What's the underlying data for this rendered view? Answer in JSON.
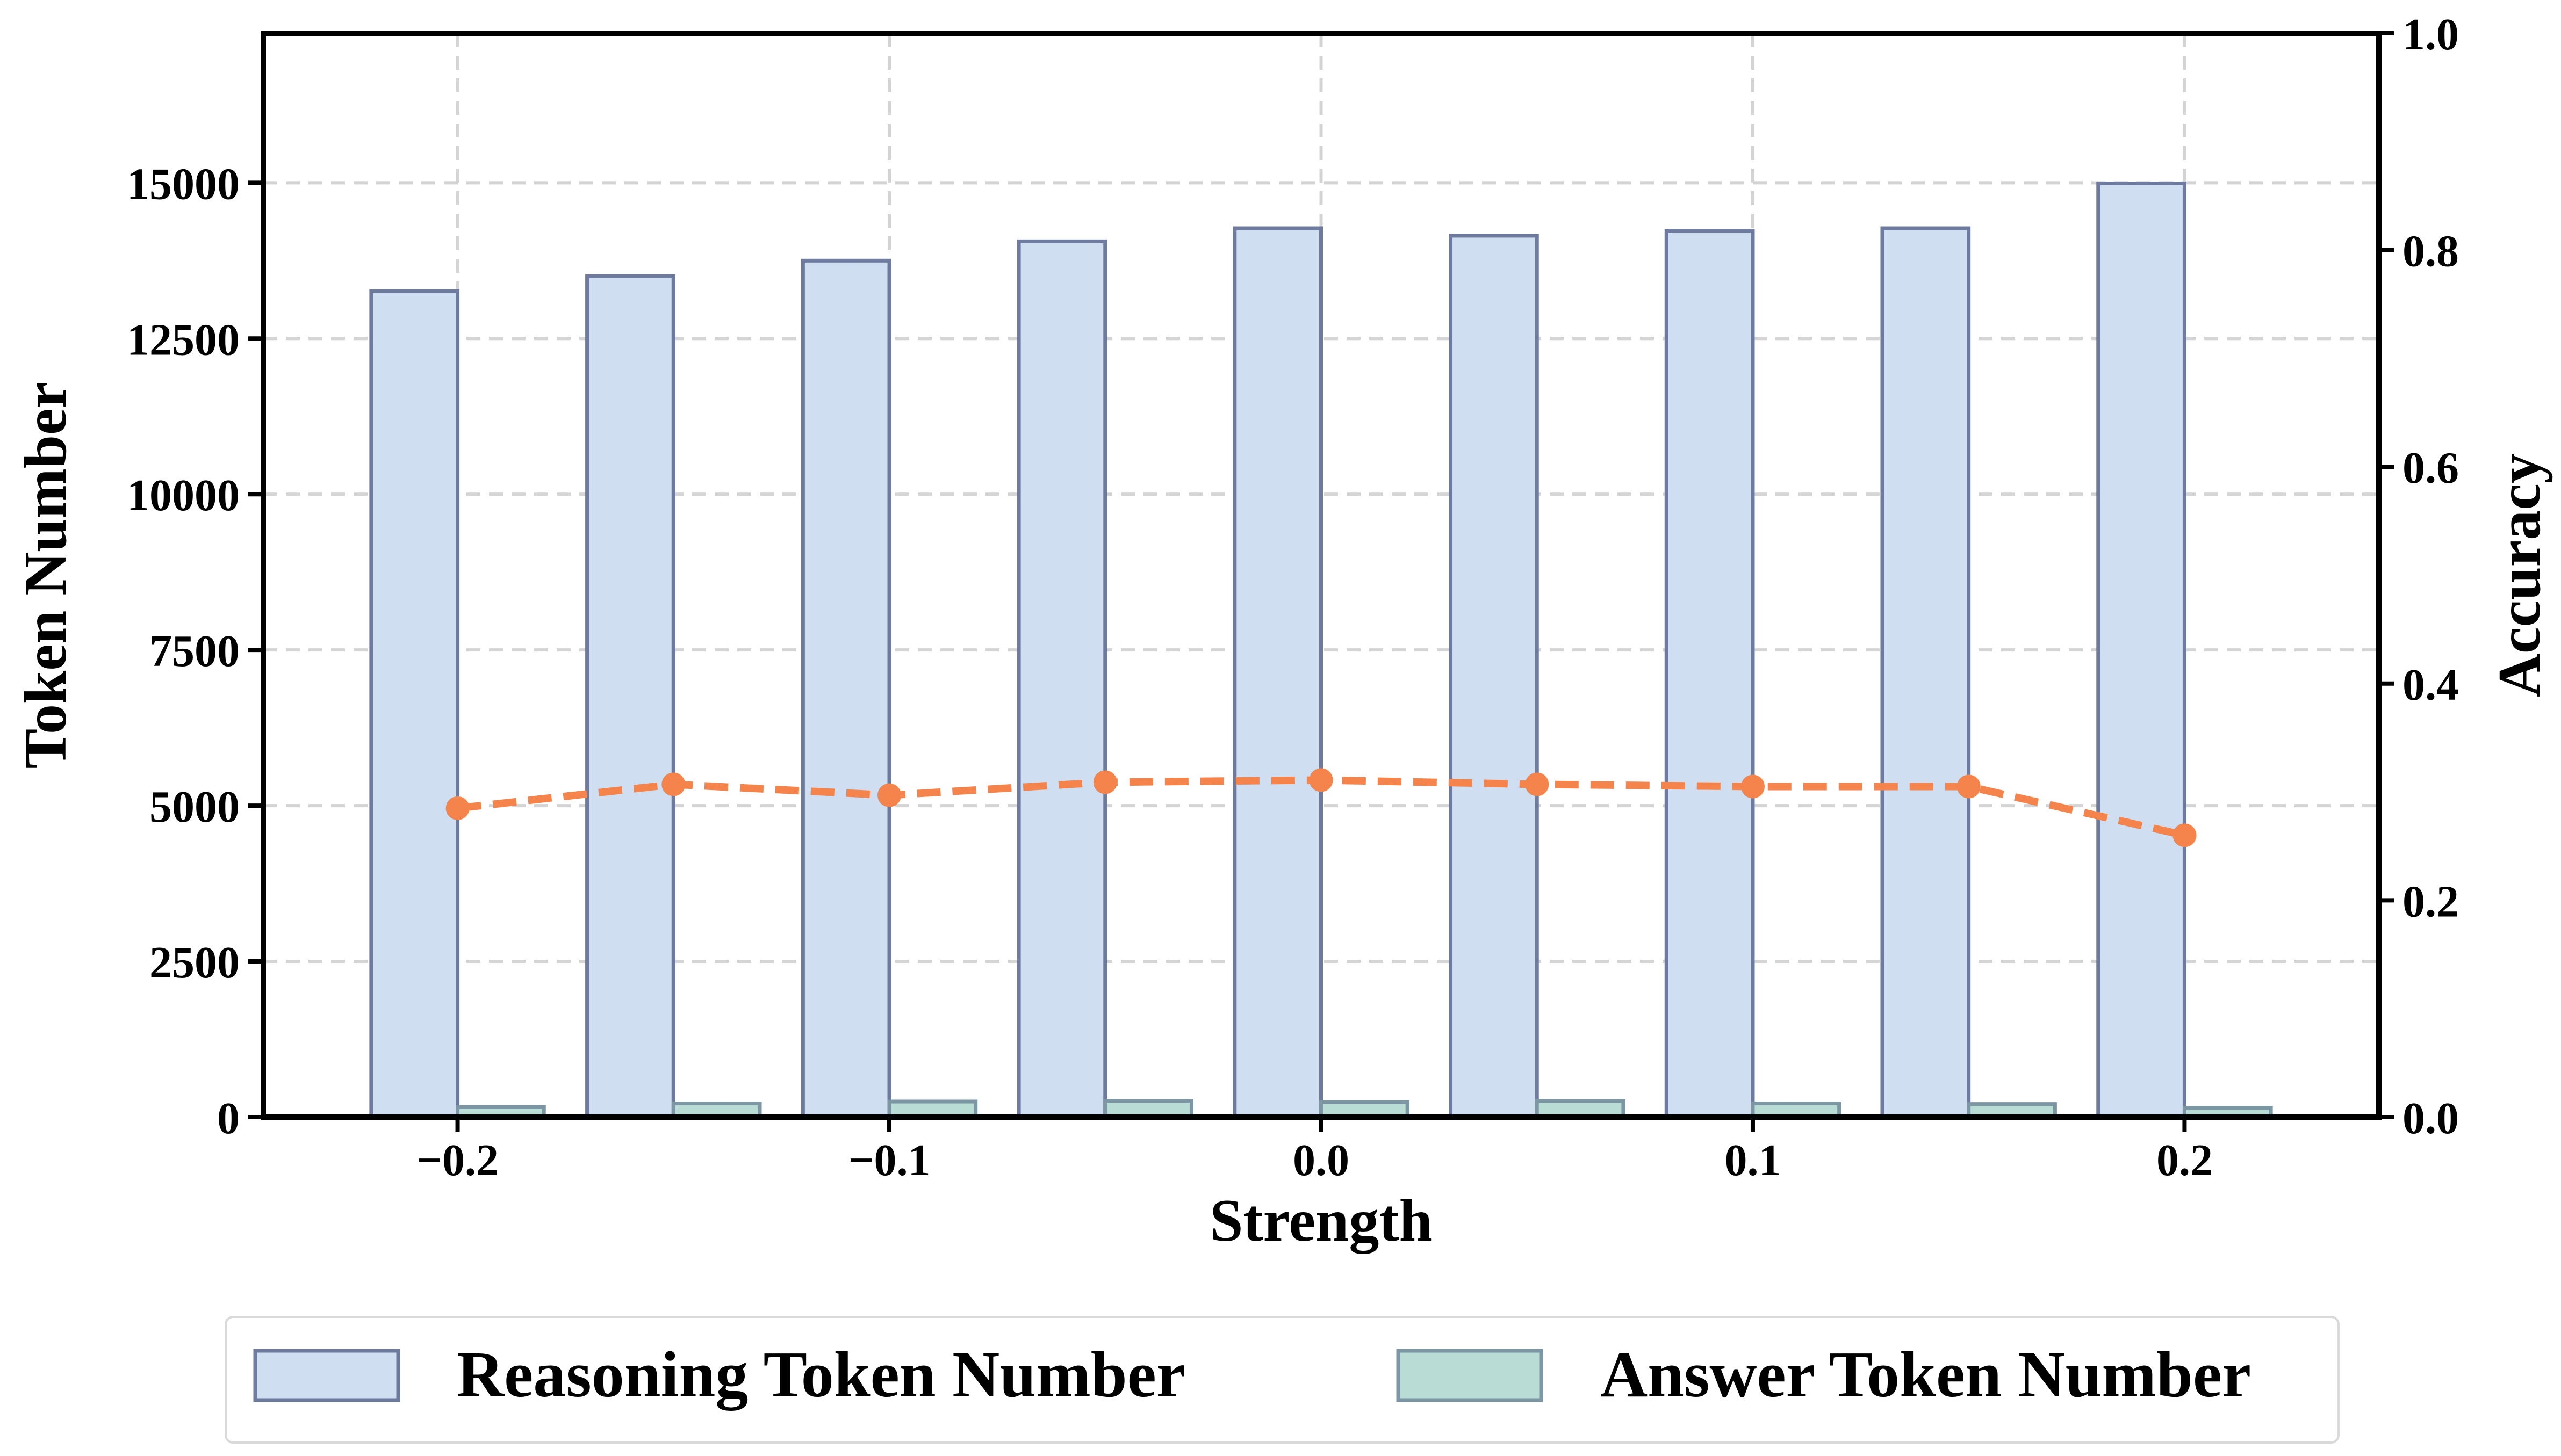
{
  "chart_data": {
    "type": "bar",
    "xlabel": "Strength",
    "ylabel_left": "Token Number",
    "ylabel_right": "Accuracy",
    "x": [
      -0.2,
      -0.15,
      -0.1,
      -0.05,
      0.0,
      0.05,
      0.1,
      0.15,
      0.2
    ],
    "xlim": [
      -0.245,
      0.245
    ],
    "x_ticks": [
      -0.2,
      -0.1,
      0.0,
      0.1,
      0.2
    ],
    "x_tick_labels": [
      "−0.2",
      "−0.1",
      "0.0",
      "0.1",
      "0.2"
    ],
    "ylim_left": [
      0,
      17400
    ],
    "y_ticks_left": [
      0,
      2500,
      5000,
      7500,
      10000,
      12500,
      15000
    ],
    "y_tick_labels_left": [
      "0",
      "2500",
      "5000",
      "7500",
      "10000",
      "12500",
      "15000"
    ],
    "ylim_right": [
      0,
      1.0
    ],
    "y_ticks_right": [
      0.0,
      0.2,
      0.4,
      0.6,
      0.8,
      1.0
    ],
    "y_tick_labels_right": [
      "0.0",
      "0.2",
      "0.4",
      "0.6",
      "0.8",
      "1.0"
    ],
    "grid": true,
    "legend_position": "bottom-center, below plot",
    "series": [
      {
        "name": "Reasoning Token Number",
        "kind": "bar",
        "axis": "left",
        "color": "#cfdff1",
        "edge_color": "#6e7a9e",
        "values": [
          13260,
          13500,
          13750,
          14060,
          14270,
          14150,
          14230,
          14270,
          14990
        ]
      },
      {
        "name": "Answer Token Number",
        "kind": "bar",
        "axis": "left",
        "color": "#b9dcd5",
        "edge_color": "#7c96a4",
        "values": [
          160,
          220,
          250,
          260,
          240,
          260,
          220,
          210,
          150
        ]
      },
      {
        "kind": "line",
        "axis": "right",
        "color": "#f4844b",
        "style": "dashed, circle markers",
        "values": [
          0.285,
          0.307,
          0.297,
          0.309,
          0.311,
          0.307,
          0.305,
          0.305,
          0.26
        ]
      }
    ]
  }
}
